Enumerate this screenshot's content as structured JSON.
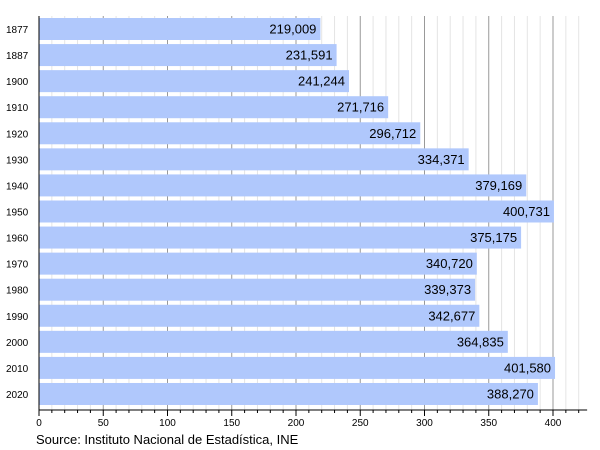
{
  "chart_data": {
    "type": "bar",
    "orientation": "horizontal",
    "categories": [
      "1877",
      "1887",
      "1900",
      "1910",
      "1920",
      "1930",
      "1940",
      "1950",
      "1960",
      "1970",
      "1980",
      "1990",
      "2000",
      "2010",
      "2020"
    ],
    "values": [
      219009,
      231591,
      241244,
      271716,
      296712,
      334371,
      379169,
      400731,
      375175,
      340720,
      339373,
      342677,
      364835,
      401580,
      388270
    ],
    "data_labels": [
      "219,009",
      "231,591",
      "241,244",
      "271,716",
      "296,712",
      "334,371",
      "379,169",
      "400,731",
      "375,175",
      "340,720",
      "339,373",
      "342,677",
      "364,835",
      "401,580",
      "388,270"
    ],
    "x_ticks": [
      "0",
      "50",
      "100",
      "150",
      "200",
      "250",
      "300",
      "350",
      "400"
    ],
    "x_tick_values": [
      0,
      50000,
      100000,
      150000,
      200000,
      250000,
      300000,
      350000,
      400000
    ],
    "xlim": [
      0,
      425000
    ],
    "grid": true,
    "bar_color": "#b0c8fc",
    "title": "",
    "xlabel": "",
    "ylabel": ""
  },
  "source": "Source: Instituto Nacional de Estadística, INE"
}
